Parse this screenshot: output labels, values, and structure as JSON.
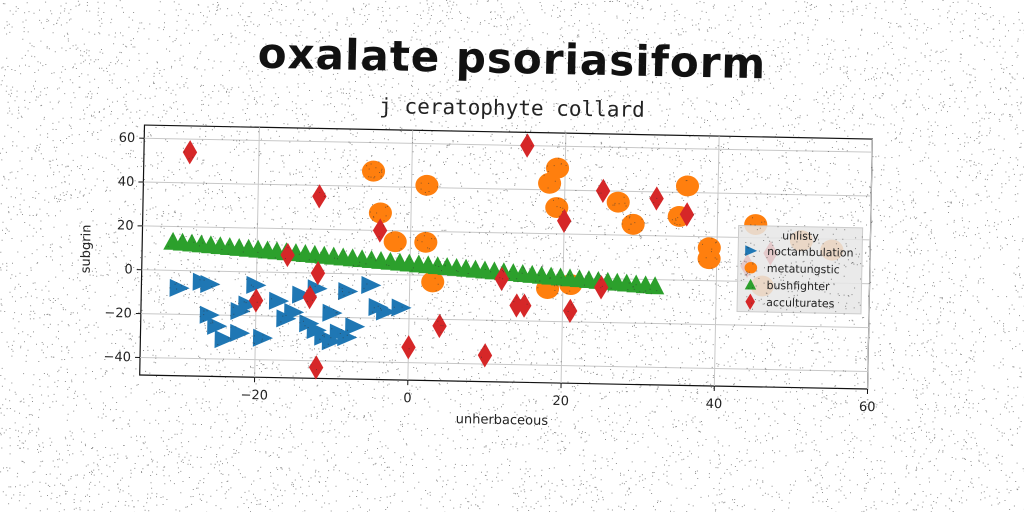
{
  "chart_data": {
    "type": "scatter",
    "title": "oxalate psoriasiform",
    "subtitle": "j ceratophyte collard",
    "xlabel": "unherbaceous",
    "ylabel": "subgrin",
    "xlim": [
      -35,
      60
    ],
    "ylim": [
      -48,
      66
    ],
    "xticks": [
      -20,
      0,
      20,
      40,
      60
    ],
    "yticks": [
      -40,
      -20,
      0,
      20,
      40,
      60
    ],
    "grid": true,
    "legend": {
      "title": "unlisty",
      "placement": "right"
    },
    "series": [
      {
        "name": "noctambulation",
        "marker": "triangle-right",
        "color": "#1f77b4",
        "points": [
          [
            -30,
            -8
          ],
          [
            -27,
            -5
          ],
          [
            -26,
            -6
          ],
          [
            -26,
            -20
          ],
          [
            -25,
            -25
          ],
          [
            -24,
            -31
          ],
          [
            -22,
            -28
          ],
          [
            -20,
            -6
          ],
          [
            -21,
            -15
          ],
          [
            -22,
            -18
          ],
          [
            -19,
            -30
          ],
          [
            -16,
            -21
          ],
          [
            -15,
            -18
          ],
          [
            -13,
            -23
          ],
          [
            -12,
            -26
          ],
          [
            -11,
            -29
          ],
          [
            -10,
            -31
          ],
          [
            -9,
            -27
          ],
          [
            -8,
            -29
          ],
          [
            -7,
            -24
          ],
          [
            -8,
            -8
          ],
          [
            -5,
            -5
          ],
          [
            -4,
            -15
          ],
          [
            -1,
            -15
          ],
          [
            -3,
            -17
          ],
          [
            -12,
            -7
          ],
          [
            -10,
            -18
          ],
          [
            -17,
            -13
          ],
          [
            -14,
            -10
          ]
        ]
      },
      {
        "name": "metatungstic",
        "marker": "circle",
        "color": "#ff7f0e",
        "points": [
          [
            -5,
            47
          ],
          [
            -4,
            28
          ],
          [
            2,
            41
          ],
          [
            -2,
            15
          ],
          [
            2,
            15
          ],
          [
            3,
            -3
          ],
          [
            19,
            50
          ],
          [
            18,
            43
          ],
          [
            19,
            32
          ],
          [
            18,
            -5
          ],
          [
            21,
            -3
          ],
          [
            27,
            35
          ],
          [
            29,
            25
          ],
          [
            36,
            43
          ],
          [
            35,
            29
          ],
          [
            39,
            15
          ],
          [
            39,
            10
          ],
          [
            45,
            26
          ],
          [
            46,
            -2
          ],
          [
            51,
            19
          ],
          [
            55,
            15
          ]
        ]
      },
      {
        "name": "bushfighter",
        "marker": "triangle-up",
        "color": "#2ca02c",
        "line": {
          "x_from": -31,
          "x_to": 32,
          "y_from": 13,
          "y_to": -3,
          "count": 52
        }
      },
      {
        "name": "acculturates",
        "marker": "diamond",
        "color": "#d62728",
        "points": [
          [
            -29,
            54
          ],
          [
            -12,
            35
          ],
          [
            -4,
            20
          ],
          [
            -16,
            8
          ],
          [
            -12,
            0
          ],
          [
            -20,
            -13
          ],
          [
            -13,
            -11
          ],
          [
            -12,
            -43
          ],
          [
            0,
            -33
          ],
          [
            4,
            -23
          ],
          [
            10,
            -36
          ],
          [
            12,
            -1
          ],
          [
            14,
            -13
          ],
          [
            15,
            -13
          ],
          [
            15,
            60
          ],
          [
            20,
            26
          ],
          [
            21,
            -15
          ],
          [
            25,
            40
          ],
          [
            25,
            -4
          ],
          [
            32,
            37
          ],
          [
            36,
            30
          ],
          [
            44,
            7
          ],
          [
            47,
            13
          ]
        ]
      }
    ]
  }
}
